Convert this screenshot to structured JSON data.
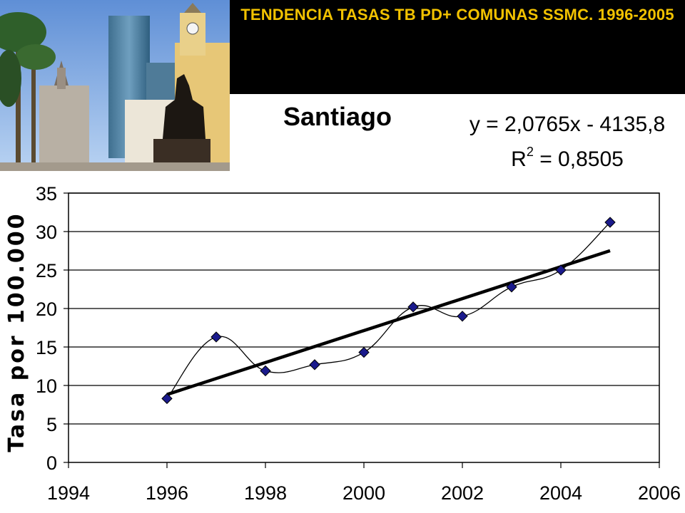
{
  "slide": {
    "title": "TENDENCIA TASAS TB PD+ COMUNAS SSMC. 1996-2005",
    "photo_alt": "Plaza de Armas, Santiago"
  },
  "chart_data": {
    "type": "scatter",
    "title": "Santiago",
    "xlabel": "",
    "ylabel": "Tasa por 100.000",
    "xlim": [
      1994,
      2006
    ],
    "ylim": [
      0,
      35
    ],
    "xticks": [
      1994,
      1996,
      1998,
      2000,
      2002,
      2004,
      2006
    ],
    "yticks": [
      0,
      5,
      10,
      15,
      20,
      25,
      30,
      35
    ],
    "grid": true,
    "marker_color": "#1a1a8c",
    "series": [
      {
        "x": [
          1996,
          1997,
          1998,
          1999,
          2000,
          2001,
          2002,
          2003,
          2004,
          2005
        ],
        "y": [
          8.3,
          16.3,
          11.9,
          12.7,
          14.3,
          20.2,
          19.0,
          22.8,
          25.0,
          31.2
        ]
      }
    ],
    "trendline": {
      "equation": "y = 2,0765x - 4135,8",
      "r2_label": "R",
      "r2_sup": "2",
      "r2_value": " = 0,8505",
      "slope": 2.0765,
      "x_range": [
        1996,
        2005
      ]
    }
  }
}
